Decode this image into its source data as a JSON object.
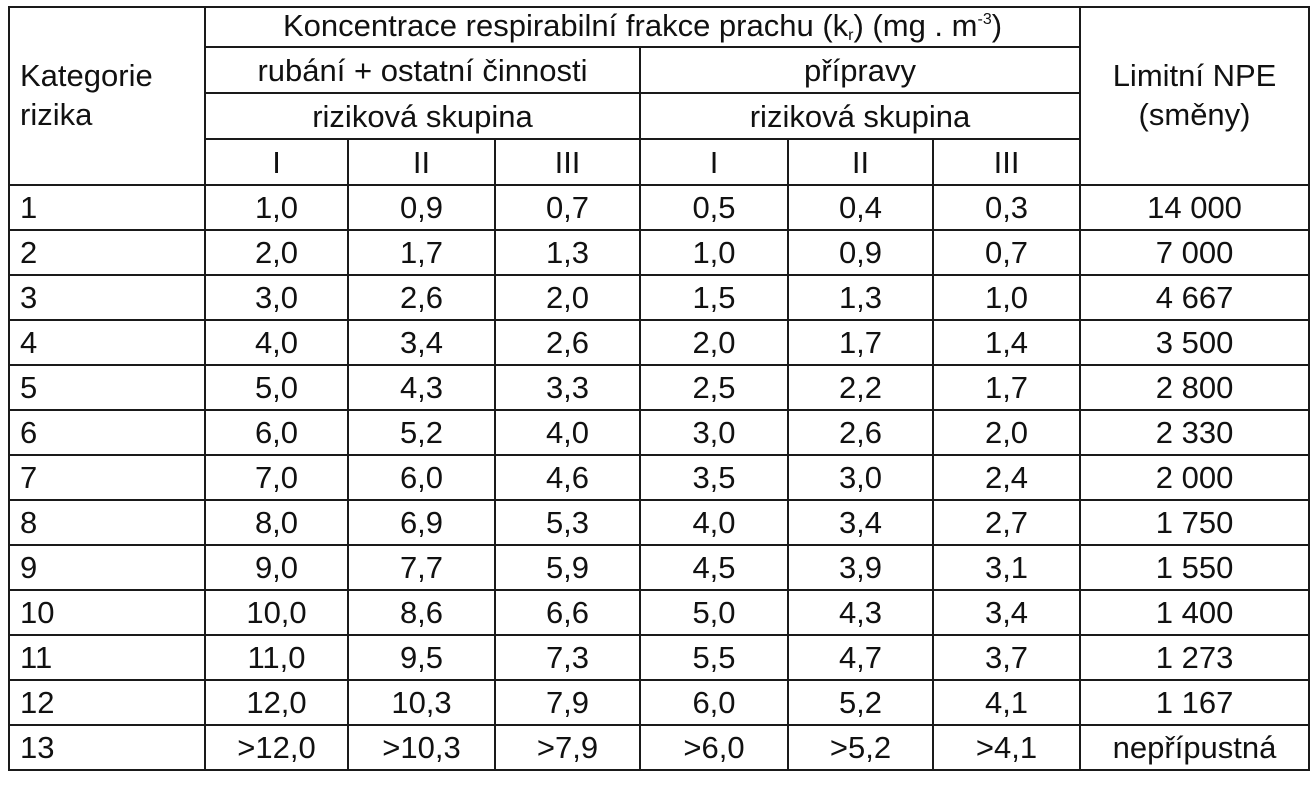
{
  "table": {
    "header": {
      "category_line1": "Kategorie",
      "category_line2": "rizika",
      "concentration_prefix": "Koncentrace respirabilní frakce prachu (k",
      "concentration_sub": "r",
      "concentration_mid": ") (mg . m",
      "concentration_sup": "-3",
      "concentration_suffix": ")",
      "group1": "rubání + ostatní činnosti",
      "group2": "přípravy",
      "risk_group": "riziková skupina",
      "roman": [
        "I",
        "II",
        "III"
      ],
      "limit_line1": "Limitní NPE",
      "limit_line2": "(směny)"
    },
    "rows": [
      [
        "1",
        "1,0",
        "0,9",
        "0,7",
        "0,5",
        "0,4",
        "0,3",
        "14 000"
      ],
      [
        "2",
        "2,0",
        "1,7",
        "1,3",
        "1,0",
        "0,9",
        "0,7",
        "7 000"
      ],
      [
        "3",
        "3,0",
        "2,6",
        "2,0",
        "1,5",
        "1,3",
        "1,0",
        "4 667"
      ],
      [
        "4",
        "4,0",
        "3,4",
        "2,6",
        "2,0",
        "1,7",
        "1,4",
        "3 500"
      ],
      [
        "5",
        "5,0",
        "4,3",
        "3,3",
        "2,5",
        "2,2",
        "1,7",
        "2 800"
      ],
      [
        "6",
        "6,0",
        "5,2",
        "4,0",
        "3,0",
        "2,6",
        "2,0",
        "2 330"
      ],
      [
        "7",
        "7,0",
        "6,0",
        "4,6",
        "3,5",
        "3,0",
        "2,4",
        "2 000"
      ],
      [
        "8",
        "8,0",
        "6,9",
        "5,3",
        "4,0",
        "3,4",
        "2,7",
        "1 750"
      ],
      [
        "9",
        "9,0",
        "7,7",
        "5,9",
        "4,5",
        "3,9",
        "3,1",
        "1 550"
      ],
      [
        "10",
        "10,0",
        "8,6",
        "6,6",
        "5,0",
        "4,3",
        "3,4",
        "1 400"
      ],
      [
        "11",
        "11,0",
        "9,5",
        "7,3",
        "5,5",
        "4,7",
        "3,7",
        "1 273"
      ],
      [
        "12",
        "12,0",
        "10,3",
        "7,9",
        "6,0",
        "5,2",
        "4,1",
        "1 167"
      ],
      [
        "13",
        ">12,0",
        ">10,3",
        ">7,9",
        ">6,0",
        ">5,2",
        ">4,1",
        "nepřípustná"
      ]
    ]
  }
}
